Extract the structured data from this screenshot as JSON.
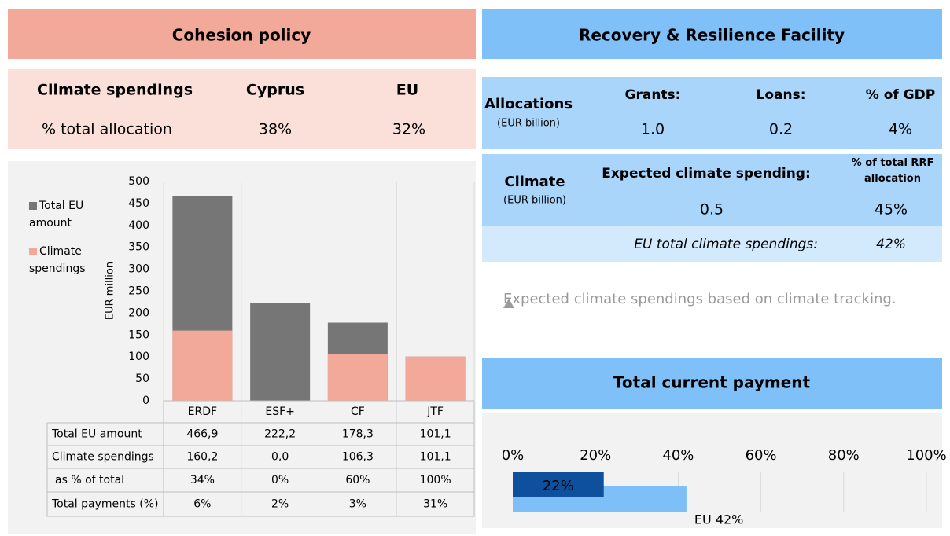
{
  "cohesion": {
    "title": "Cohesion policy",
    "headers": [
      "Climate spendings",
      "Cyprus",
      "EU"
    ],
    "row": [
      "% total allocation",
      "38%",
      "32%"
    ]
  },
  "rrf": {
    "title": "Recovery & Resilience Facility",
    "allocations": {
      "label": "Allocations",
      "unit": "(EUR billion)",
      "headers": [
        "Grants:",
        "Loans:",
        "% of GDP"
      ],
      "values": [
        "1.0",
        "0.2",
        "4%"
      ]
    },
    "climate": {
      "label": "Climate",
      "unit": "(EUR billion)",
      "headers": [
        "Expected climate spending:",
        "% of total RRF allocation"
      ],
      "values": [
        "0.5",
        "45%"
      ]
    },
    "eu_total": {
      "label": "EU total climate spendings:",
      "value": "42%"
    },
    "note": "Expected climate spendings based on climate tracking."
  },
  "chart_data": [
    {
      "type": "bar",
      "ylabel": "EUR million",
      "categories": [
        "ERDF",
        "ESF+",
        "CF",
        "JTF"
      ],
      "series": [
        {
          "name": "Total EU amount",
          "color": "#767676",
          "values": [
            466.9,
            222.2,
            178.3,
            101.1
          ],
          "value_labels": [
            "466,9",
            "222,2",
            "178,3",
            "101,1"
          ]
        },
        {
          "name": "Climate spendings",
          "color": "#f2a999",
          "values": [
            160.2,
            0,
            106.3,
            101.1
          ],
          "value_labels": [
            "160,2",
            "0,0",
            "106,3",
            "101,1"
          ]
        }
      ],
      "table_rows": [
        {
          "name": "as % of total",
          "values": [
            34,
            0,
            60,
            100
          ],
          "value_labels": [
            "34%",
            "0%",
            "60%",
            "100%"
          ]
        },
        {
          "name": "Total payments (%)",
          "values": [
            6,
            2,
            3,
            31
          ],
          "value_labels": [
            "6%",
            "2%",
            "3%",
            "31%"
          ]
        }
      ],
      "ylim": [
        0,
        500
      ],
      "yticks": [
        0,
        50,
        100,
        150,
        200,
        250,
        300,
        350,
        400,
        450,
        500
      ]
    },
    {
      "type": "hbar",
      "title": "Total current payment",
      "series": [
        {
          "color": "#0e4f9e",
          "values": [
            22
          ],
          "value_labels": [
            "22%"
          ]
        },
        {
          "color": "#7fbff7",
          "values": [
            42
          ],
          "value_labels": [
            "EU 42%"
          ]
        }
      ],
      "xlim": [
        0,
        100
      ],
      "xticks": [
        {
          "value": 0,
          "label": "0%"
        },
        {
          "value": 20,
          "label": "20%"
        },
        {
          "value": 40,
          "label": "40%"
        },
        {
          "value": 60,
          "label": "60%"
        },
        {
          "value": 80,
          "label": "80%"
        },
        {
          "value": 100,
          "label": "100%"
        }
      ],
      "grid": true
    }
  ]
}
